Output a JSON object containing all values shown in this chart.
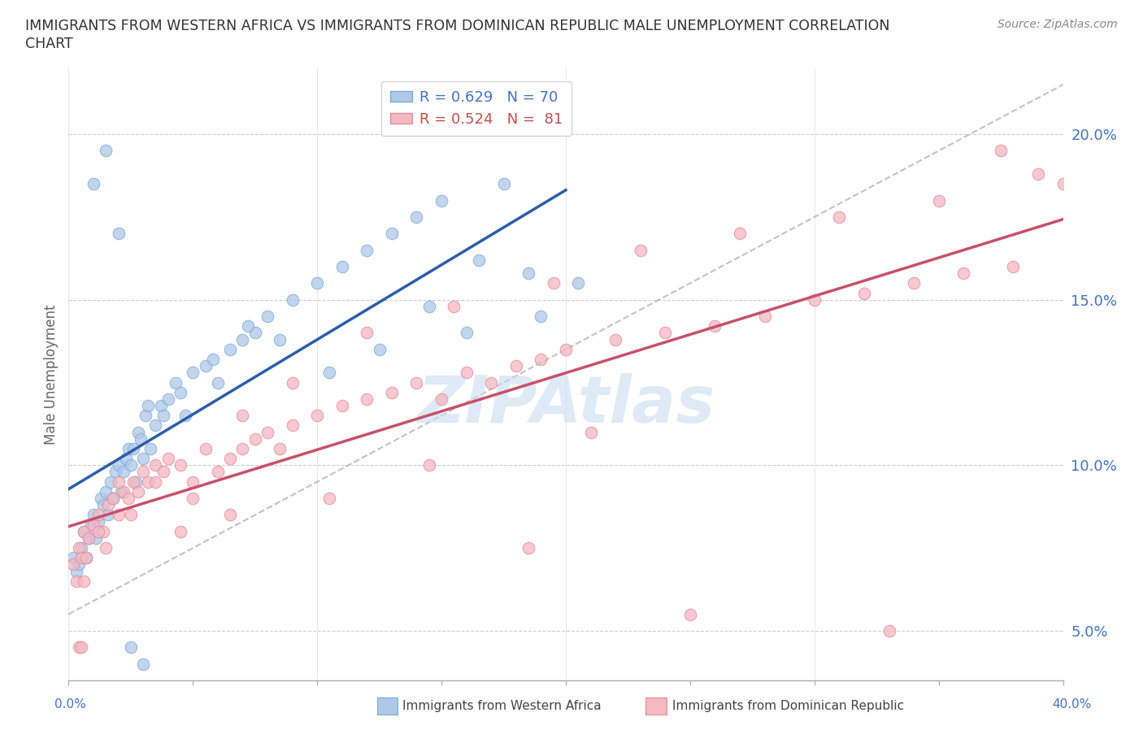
{
  "title_line1": "IMMIGRANTS FROM WESTERN AFRICA VS IMMIGRANTS FROM DOMINICAN REPUBLIC MALE UNEMPLOYMENT CORRELATION",
  "title_line2": "CHART",
  "source": "Source: ZipAtlas.com",
  "ylabel": "Male Unemployment",
  "legend_line1": "R = 0.629   N = 70",
  "legend_line2": "R = 0.524   N =  81",
  "y_ticks": [
    5.0,
    10.0,
    15.0,
    20.0
  ],
  "xlim": [
    0,
    40
  ],
  "ylim": [
    3.5,
    22.0
  ],
  "blue_scatter_color": "#aec8e8",
  "blue_scatter_edge": "#7aacda",
  "pink_scatter_color": "#f4b8c1",
  "pink_scatter_edge": "#e88a9a",
  "blue_line_color": "#2b5fac",
  "pink_line_color": "#c9506a",
  "gray_dash_color": "#aaaaaa",
  "watermark_color": "#c8ddf0",
  "legend_blue_color": "#4472c4",
  "legend_pink_color": "#c0504d",
  "axis_color": "#888888",
  "blue_x": [
    0.2,
    0.3,
    0.4,
    0.5,
    0.6,
    0.7,
    0.8,
    0.9,
    1.0,
    1.1,
    1.2,
    1.3,
    1.4,
    1.5,
    1.6,
    1.7,
    1.8,
    1.9,
    2.0,
    2.1,
    2.2,
    2.3,
    2.4,
    2.5,
    2.6,
    2.7,
    2.8,
    2.9,
    3.0,
    3.1,
    3.3,
    3.5,
    3.7,
    4.0,
    4.3,
    4.7,
    5.0,
    5.5,
    6.0,
    6.5,
    7.0,
    7.5,
    8.0,
    9.0,
    10.0,
    11.0,
    12.0,
    13.0,
    14.0,
    15.0,
    16.0,
    17.5,
    19.0,
    20.5,
    3.2,
    3.8,
    4.5,
    5.8,
    7.2,
    8.5,
    10.5,
    12.5,
    14.5,
    16.5,
    18.5,
    1.0,
    1.5,
    2.0,
    2.5,
    3.0
  ],
  "blue_y": [
    7.2,
    6.8,
    7.0,
    7.5,
    8.0,
    7.2,
    7.8,
    8.2,
    8.5,
    7.8,
    8.3,
    9.0,
    8.8,
    9.2,
    8.5,
    9.5,
    9.0,
    9.8,
    10.0,
    9.2,
    9.8,
    10.2,
    10.5,
    10.0,
    10.5,
    9.5,
    11.0,
    10.8,
    10.2,
    11.5,
    10.5,
    11.2,
    11.8,
    12.0,
    12.5,
    11.5,
    12.8,
    13.0,
    12.5,
    13.5,
    13.8,
    14.0,
    14.5,
    15.0,
    15.5,
    16.0,
    16.5,
    17.0,
    17.5,
    18.0,
    14.0,
    18.5,
    14.5,
    15.5,
    11.8,
    11.5,
    12.2,
    13.2,
    14.2,
    13.8,
    12.8,
    13.5,
    14.8,
    16.2,
    15.8,
    18.5,
    19.5,
    17.0,
    4.5,
    4.0
  ],
  "pink_x": [
    0.2,
    0.3,
    0.4,
    0.5,
    0.6,
    0.8,
    1.0,
    1.2,
    1.4,
    1.6,
    1.8,
    2.0,
    2.2,
    2.4,
    2.6,
    2.8,
    3.0,
    3.2,
    3.5,
    3.8,
    4.0,
    4.5,
    5.0,
    5.5,
    6.0,
    6.5,
    7.0,
    7.5,
    8.0,
    8.5,
    9.0,
    10.0,
    11.0,
    12.0,
    13.0,
    14.0,
    15.0,
    16.0,
    17.0,
    18.0,
    19.0,
    20.0,
    22.0,
    24.0,
    26.0,
    28.0,
    30.0,
    32.0,
    34.0,
    36.0,
    38.0,
    40.0,
    1.5,
    2.5,
    3.5,
    5.0,
    7.0,
    9.0,
    12.0,
    15.5,
    19.5,
    23.0,
    27.0,
    31.0,
    35.0,
    39.0,
    0.7,
    1.2,
    2.0,
    0.4,
    4.5,
    6.5,
    10.5,
    14.5,
    18.5,
    25.0,
    33.0,
    37.5,
    0.6,
    21.0,
    0.5
  ],
  "pink_y": [
    7.0,
    6.5,
    7.5,
    7.2,
    8.0,
    7.8,
    8.2,
    8.5,
    8.0,
    8.8,
    9.0,
    8.5,
    9.2,
    9.0,
    9.5,
    9.2,
    9.8,
    9.5,
    10.0,
    9.8,
    10.2,
    10.0,
    9.5,
    10.5,
    9.8,
    10.2,
    10.5,
    10.8,
    11.0,
    10.5,
    11.2,
    11.5,
    11.8,
    12.0,
    12.2,
    12.5,
    12.0,
    12.8,
    12.5,
    13.0,
    13.2,
    13.5,
    13.8,
    14.0,
    14.2,
    14.5,
    15.0,
    15.2,
    15.5,
    15.8,
    16.0,
    18.5,
    7.5,
    8.5,
    9.5,
    9.0,
    11.5,
    12.5,
    14.0,
    14.8,
    15.5,
    16.5,
    17.0,
    17.5,
    18.0,
    18.8,
    7.2,
    8.0,
    9.5,
    4.5,
    8.0,
    8.5,
    9.0,
    10.0,
    7.5,
    5.5,
    5.0,
    19.5,
    6.5,
    11.0,
    4.5
  ]
}
